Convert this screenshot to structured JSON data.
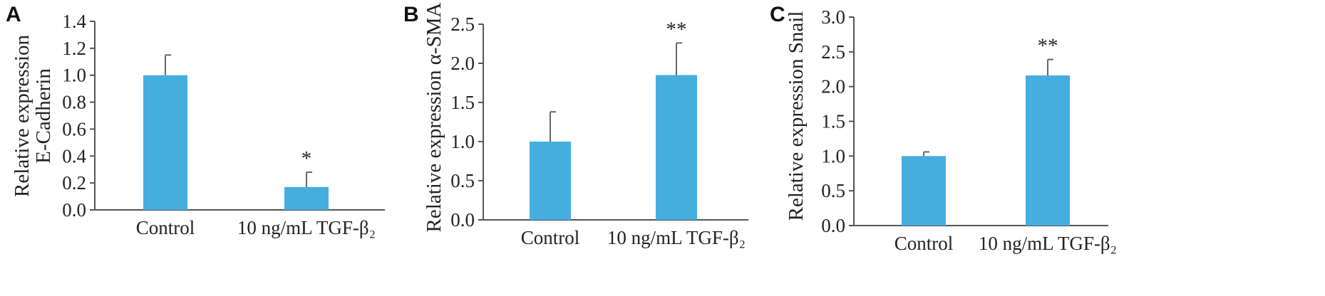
{
  "chart_data": [
    {
      "panel": "A",
      "type": "bar",
      "ylabel": [
        "Relative expression",
        "E-Cadherin"
      ],
      "ylim": [
        0,
        1.4
      ],
      "yticks": [
        "0.0",
        "0.2",
        "0.4",
        "0.6",
        "0.8",
        "1.0",
        "1.2",
        "1.4"
      ],
      "categories": [
        "Control",
        "10 ng/mL TGF-β₂"
      ],
      "values": [
        1.0,
        0.17
      ],
      "errors": [
        0.15,
        0.11
      ],
      "significance": [
        "",
        "*"
      ],
      "bar_color": "#45aede"
    },
    {
      "panel": "B",
      "type": "bar",
      "ylabel": [
        "Relative expression α-SMA"
      ],
      "ylim": [
        0,
        2.5
      ],
      "yticks": [
        "0.0",
        "0.5",
        "1.0",
        "1.5",
        "2.0",
        "2.5"
      ],
      "categories": [
        "Control",
        "10 ng/mL TGF-β₂"
      ],
      "values": [
        1.0,
        1.85
      ],
      "errors": [
        0.38,
        0.41
      ],
      "significance": [
        "",
        "**"
      ],
      "bar_color": "#45aede"
    },
    {
      "panel": "C",
      "type": "bar",
      "ylabel": [
        "Relative expression Snail"
      ],
      "ylim": [
        0,
        3.0
      ],
      "yticks": [
        "0.0",
        "0.5",
        "1.0",
        "1.5",
        "2.0",
        "2.5",
        "3.0"
      ],
      "categories": [
        "Control",
        "10 ng/mL TGF-β₂"
      ],
      "values": [
        1.0,
        2.16
      ],
      "errors": [
        0.06,
        0.23
      ],
      "significance": [
        "",
        "**"
      ],
      "bar_color": "#45aede"
    }
  ]
}
